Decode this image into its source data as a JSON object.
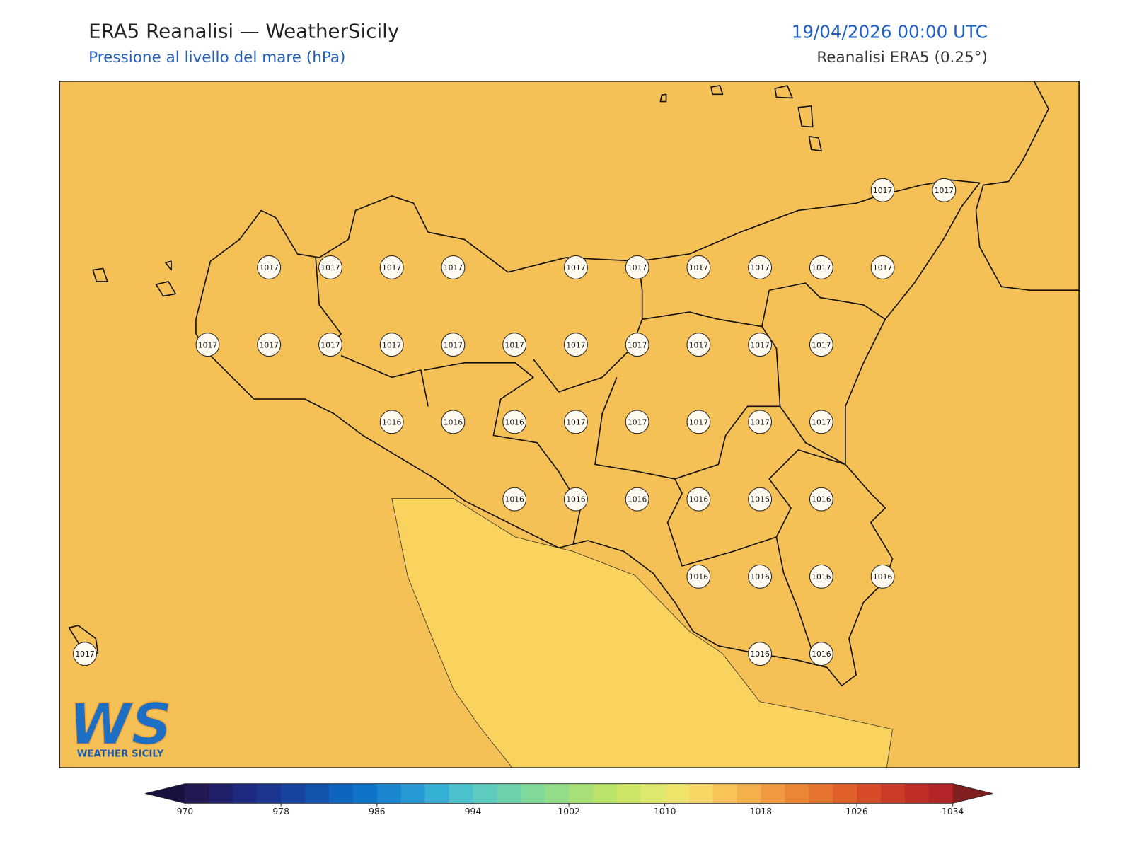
{
  "header": {
    "title": "ERA5 Reanalisi — WeatherSicily",
    "subtitle": "Pressione al livello del mare (hPa)",
    "datetime": "19/04/2026 00:00 UTC",
    "source": "Reanalisi ERA5 (0.25°)"
  },
  "map": {
    "fill_color": "#f5c055",
    "low_area_color": "#fad25e"
  },
  "pressure_grid": {
    "rows": [
      [
        null,
        null,
        null,
        null,
        null,
        null,
        null,
        null,
        null,
        null,
        null,
        null,
        null,
        1017,
        1017
      ],
      [
        null,
        null,
        null,
        1017,
        1017,
        1017,
        1017,
        null,
        1017,
        1017,
        1017,
        1017,
        1017,
        1017,
        null
      ],
      [
        null,
        null,
        1017,
        1017,
        1017,
        1017,
        1017,
        1017,
        1017,
        1017,
        1017,
        1017,
        1017,
        null,
        null
      ],
      [
        null,
        null,
        null,
        null,
        null,
        1016,
        1016,
        1016,
        1017,
        1017,
        1017,
        1017,
        1017,
        null,
        null
      ],
      [
        null,
        null,
        null,
        null,
        null,
        null,
        null,
        1016,
        1016,
        1016,
        1016,
        1016,
        1016,
        null,
        null
      ],
      [
        null,
        null,
        null,
        null,
        null,
        null,
        null,
        null,
        null,
        null,
        1016,
        1016,
        1016,
        1016,
        null
      ],
      [
        1017,
        null,
        null,
        null,
        null,
        null,
        null,
        null,
        null,
        null,
        null,
        1016,
        1016,
        null,
        null
      ]
    ]
  },
  "colorbar": {
    "range": [
      970,
      1034
    ],
    "ticks": [
      970,
      978,
      986,
      994,
      1002,
      1010,
      1018,
      1026,
      1034
    ],
    "under_color": "#1a1040",
    "over_color": "#7f1f1f",
    "colors": [
      "#241853",
      "#20206a",
      "#1e2a80",
      "#1c3690",
      "#16449e",
      "#1253ae",
      "#0f64bd",
      "#0d74c8",
      "#1a86cf",
      "#279ad3",
      "#34b0d4",
      "#4bc2cc",
      "#5ecbbf",
      "#6ed3ad",
      "#80d99b",
      "#93dd88",
      "#a6e077",
      "#bae36a",
      "#cde668",
      "#dde86c",
      "#ede56a",
      "#f8d865",
      "#f7c455",
      "#f4b04a",
      "#f09b40",
      "#ec8637",
      "#e7722f",
      "#e25e2b",
      "#d84a28",
      "#cd3a28",
      "#c22d28",
      "#b52428"
    ]
  },
  "logo": {
    "mark": "WS",
    "text": "WEATHER SICILY"
  }
}
